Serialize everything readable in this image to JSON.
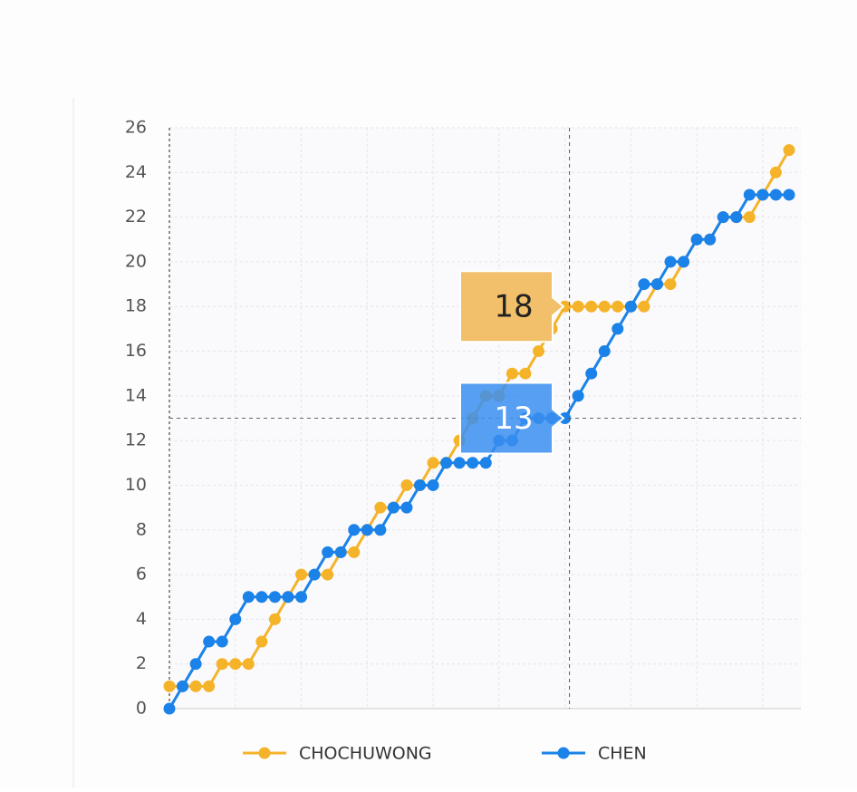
{
  "chart_data": {
    "type": "line",
    "categories": [
      null,
      null,
      null,
      null,
      null,
      null,
      null,
      null,
      null,
      null,
      null,
      null,
      null,
      null,
      null,
      null,
      null,
      null,
      null,
      null,
      null,
      null,
      null,
      null,
      null,
      null,
      null,
      null,
      null,
      null,
      null,
      null,
      null,
      null,
      null,
      null,
      null,
      null,
      null,
      null,
      null,
      null,
      null,
      null,
      null,
      null,
      null,
      null
    ],
    "series": [
      {
        "name": "CHOCHUWONG",
        "color": "#f5b329",
        "values": [
          1,
          1,
          1,
          1,
          2,
          2,
          2,
          3,
          4,
          5,
          6,
          6,
          6,
          7,
          7,
          8,
          9,
          9,
          10,
          10,
          11,
          11,
          12,
          13,
          14,
          14,
          15,
          15,
          16,
          17,
          18,
          18,
          18,
          18,
          18,
          18,
          18,
          19,
          19,
          20,
          21,
          21,
          22,
          22,
          22,
          23,
          24,
          25
        ]
      },
      {
        "name": "CHEN",
        "color": "#1a82e8",
        "values": [
          0,
          1,
          2,
          3,
          3,
          4,
          5,
          5,
          5,
          5,
          5,
          6,
          7,
          7,
          8,
          8,
          8,
          9,
          9,
          10,
          10,
          11,
          11,
          11,
          11,
          12,
          12,
          13,
          13,
          13,
          13,
          14,
          15,
          16,
          17,
          18,
          19,
          19,
          20,
          20,
          21,
          21,
          22,
          22,
          23,
          23,
          23,
          23
        ]
      }
    ],
    "ylim": [
      0,
      26
    ],
    "yticks": [
      0,
      2,
      4,
      6,
      8,
      10,
      12,
      14,
      16,
      18,
      20,
      22,
      24,
      26
    ],
    "grid": true,
    "legend": "bottom",
    "tooltip_index": 30
  }
}
